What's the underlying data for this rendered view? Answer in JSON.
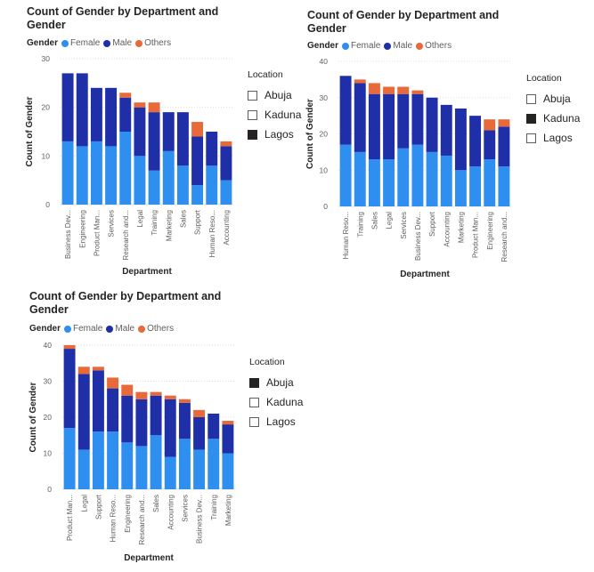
{
  "colors": {
    "female": "#2e8ff0",
    "male": "#1f2fa8",
    "others": "#e8693a",
    "grid": "#e1dfdd",
    "axis_text": "#605e5c"
  },
  "legend": {
    "title": "Gender",
    "entries": [
      "Female",
      "Male",
      "Others"
    ]
  },
  "charts": [
    {
      "title": "Count of Gender by Department and Gender",
      "xlabel": "Department",
      "ylabel": "Count of Gender",
      "slicer": {
        "title": "Location",
        "options": [
          "Abuja",
          "Kaduna",
          "Lagos"
        ],
        "selected": "Lagos"
      }
    },
    {
      "title": "Count of Gender by Department and Gender",
      "xlabel": "Department",
      "ylabel": "Count of Gender",
      "slicer": {
        "title": "Location",
        "options": [
          "Abuja",
          "Kaduna",
          "Lagos"
        ],
        "selected": "Kaduna"
      }
    },
    {
      "title": "Count of Gender by Department and Gender",
      "xlabel": "Department",
      "ylabel": "Count of Gender",
      "slicer": {
        "title": "Location",
        "options": [
          "Abuja",
          "Kaduna",
          "Lagos"
        ],
        "selected": "Abuja"
      }
    }
  ],
  "chart_data": [
    {
      "type": "bar",
      "stacked": true,
      "title": "Count of Gender by Department and Gender",
      "xlabel": "Department",
      "ylabel": "Count of Gender",
      "ylim": [
        0,
        30
      ],
      "yticks": [
        0,
        10,
        20,
        30
      ],
      "grid": true,
      "legend_position": "top-left",
      "categories": [
        "Business Dev...",
        "Engineering",
        "Product Man...",
        "Services",
        "Research and...",
        "Legal",
        "Training",
        "Marketing",
        "Sales",
        "Support",
        "Human Reso...",
        "Accounting"
      ],
      "series": [
        {
          "name": "Female",
          "values": [
            13,
            12,
            13,
            12,
            15,
            10,
            7,
            11,
            8,
            4,
            8,
            5
          ]
        },
        {
          "name": "Male",
          "values": [
            14,
            15,
            11,
            12,
            7,
            10,
            12,
            8,
            11,
            10,
            7,
            7
          ]
        },
        {
          "name": "Others",
          "values": [
            0,
            0,
            0,
            0,
            1,
            1,
            2,
            0,
            0,
            3,
            0,
            1
          ]
        }
      ]
    },
    {
      "type": "bar",
      "stacked": true,
      "title": "Count of Gender by Department and Gender",
      "xlabel": "Department",
      "ylabel": "Count of Gender",
      "ylim": [
        0,
        40
      ],
      "yticks": [
        0,
        10,
        20,
        30,
        40
      ],
      "grid": true,
      "legend_position": "top-left",
      "categories": [
        "Human Reso...",
        "Training",
        "Sales",
        "Legal",
        "Services",
        "Business Dev...",
        "Support",
        "Accounting",
        "Marketing",
        "Product Man...",
        "Engineering",
        "Research and..."
      ],
      "series": [
        {
          "name": "Female",
          "values": [
            17,
            15,
            13,
            13,
            16,
            17,
            15,
            14,
            10,
            11,
            13,
            11
          ]
        },
        {
          "name": "Male",
          "values": [
            19,
            19,
            18,
            18,
            15,
            14,
            15,
            14,
            17,
            14,
            8,
            11
          ]
        },
        {
          "name": "Others",
          "values": [
            0,
            1,
            3,
            2,
            2,
            1,
            0,
            0,
            0,
            0,
            3,
            2
          ]
        }
      ]
    },
    {
      "type": "bar",
      "stacked": true,
      "title": "Count of Gender by Department and Gender",
      "xlabel": "Department",
      "ylabel": "Count of Gender",
      "ylim": [
        0,
        40
      ],
      "yticks": [
        0,
        10,
        20,
        30,
        40
      ],
      "grid": true,
      "legend_position": "top-left",
      "categories": [
        "Product Man...",
        "Legal",
        "Support",
        "Human Reso...",
        "Engineering",
        "Research and...",
        "Sales",
        "Accounting",
        "Services",
        "Business Dev...",
        "Training",
        "Marketing"
      ],
      "series": [
        {
          "name": "Female",
          "values": [
            17,
            11,
            16,
            16,
            13,
            12,
            15,
            9,
            14,
            11,
            14,
            10
          ]
        },
        {
          "name": "Male",
          "values": [
            22,
            21,
            17,
            12,
            13,
            13,
            11,
            16,
            10,
            9,
            7,
            8
          ]
        },
        {
          "name": "Others",
          "values": [
            1,
            2,
            1,
            3,
            3,
            2,
            1,
            1,
            1,
            2,
            0,
            1
          ]
        }
      ]
    }
  ]
}
